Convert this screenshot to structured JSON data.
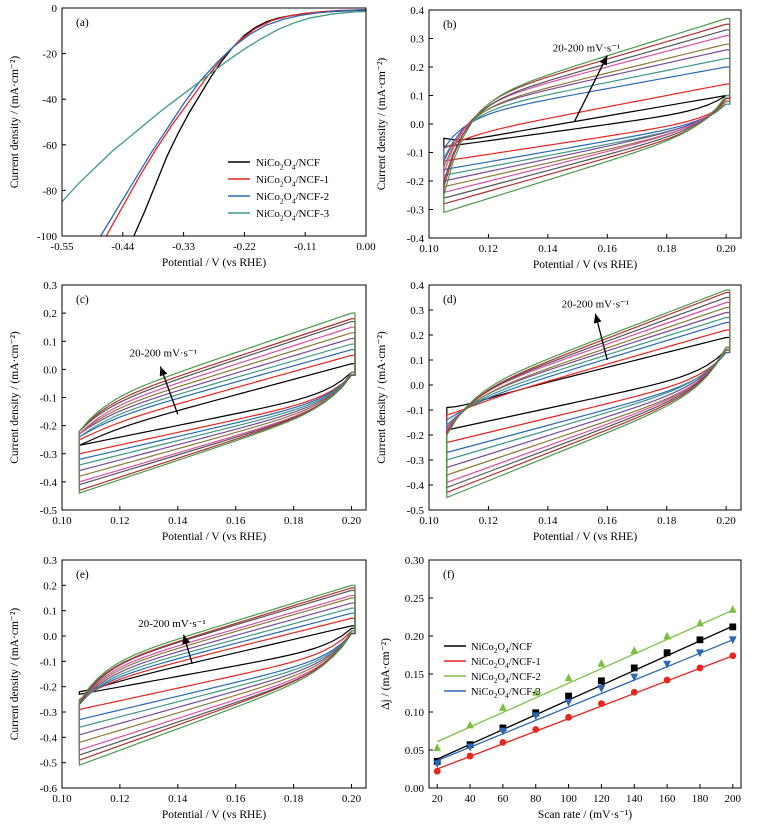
{
  "chart_data": [
    {
      "panel": "(a)",
      "type": "line",
      "xlabel": "Potential / V (vs RHE)",
      "ylabel": "Current density / (mA·cm⁻²)",
      "xlim": [
        -0.55,
        0.0
      ],
      "ylim": [
        -100,
        0
      ],
      "xticks": [
        -0.55,
        -0.44,
        -0.33,
        -0.22,
        -0.11,
        0.0
      ],
      "xtick_labels": [
        "-0.55",
        "-0.44",
        "-0.33",
        "-0.22",
        "-0.11",
        "0.00"
      ],
      "yticks": [
        -100,
        -80,
        -60,
        -40,
        -20,
        0
      ],
      "ytick_labels": [
        "-100",
        "-80",
        "-60",
        "-40",
        "-20",
        "0"
      ],
      "legend": "center-right",
      "series": [
        {
          "name": "NiCo2O4/NCF",
          "color": "#000000",
          "x": [
            -0.42,
            -0.4,
            -0.38,
            -0.36,
            -0.34,
            -0.32,
            -0.3,
            -0.28,
            -0.26,
            -0.24,
            -0.22,
            -0.2,
            -0.18,
            -0.16,
            -0.14,
            -0.12,
            -0.1,
            -0.08,
            -0.05,
            -0.02,
            0.0
          ],
          "y": [
            -100,
            -89,
            -77,
            -65,
            -55,
            -46,
            -38,
            -30,
            -23,
            -17,
            -12,
            -8.5,
            -6,
            -4.5,
            -3.5,
            -2.8,
            -2.2,
            -1.8,
            -1.4,
            -1.1,
            -1.0
          ]
        },
        {
          "name": "NiCo2O4/NCF-1",
          "color": "#e8251f",
          "x": [
            -0.47,
            -0.44,
            -0.41,
            -0.38,
            -0.35,
            -0.32,
            -0.29,
            -0.26,
            -0.23,
            -0.2,
            -0.17,
            -0.14,
            -0.11,
            -0.08,
            -0.05,
            0.0
          ],
          "y": [
            -100,
            -87,
            -74,
            -62,
            -51,
            -41,
            -31,
            -22,
            -14.5,
            -9,
            -5.5,
            -3.5,
            -2.3,
            -1.6,
            -1.1,
            -0.7
          ]
        },
        {
          "name": "NiCo2O4/NCF-2",
          "color": "#2a68b5",
          "x": [
            -0.48,
            -0.45,
            -0.42,
            -0.39,
            -0.36,
            -0.33,
            -0.3,
            -0.27,
            -0.24,
            -0.21,
            -0.18,
            -0.15,
            -0.12,
            -0.09,
            -0.05,
            0.0
          ],
          "y": [
            -100,
            -88,
            -76,
            -64,
            -53,
            -42,
            -32,
            -24,
            -17,
            -11.5,
            -7.5,
            -5,
            -3.3,
            -2.2,
            -1.3,
            -0.8
          ]
        },
        {
          "name": "NiCo2O4/NCF-3",
          "color": "#3f9a86",
          "x": [
            -0.55,
            -0.52,
            -0.49,
            -0.46,
            -0.43,
            -0.4,
            -0.37,
            -0.34,
            -0.31,
            -0.28,
            -0.25,
            -0.22,
            -0.19,
            -0.16,
            -0.13,
            -0.1,
            -0.06,
            -0.02,
            0.0
          ],
          "y": [
            -85,
            -77,
            -70,
            -63,
            -57,
            -51,
            -45,
            -39.5,
            -34,
            -28.5,
            -23,
            -18,
            -13.5,
            -9.5,
            -6.5,
            -4.3,
            -2.6,
            -1.7,
            -1.5
          ]
        }
      ]
    },
    {
      "panel": "(b)",
      "type": "line",
      "subtype": "cyclic-voltammetry",
      "xlabel": "Potential / V (vs RHE)",
      "ylabel": "Current density / (mA·cm⁻²)",
      "xlim": [
        0.1,
        0.205
      ],
      "ylim": [
        -0.4,
        0.4
      ],
      "xticks": [
        0.1,
        0.12,
        0.14,
        0.16,
        0.18,
        0.2
      ],
      "xtick_labels": [
        "0.10",
        "0.12",
        "0.14",
        "0.16",
        "0.18",
        "0.20"
      ],
      "yticks": [
        -0.4,
        -0.3,
        -0.2,
        -0.1,
        0.0,
        0.1,
        0.2,
        0.3,
        0.4
      ],
      "ytick_labels": [
        "-0.4",
        "-0.3",
        "-0.2",
        "-0.1",
        "0.0",
        "0.1",
        "0.2",
        "0.3",
        "0.4"
      ],
      "annotation": {
        "text": "20-200 mV·s⁻¹",
        "x": 0.153,
        "y": 0.255,
        "arrow_from": [
          0.149,
          0.01
        ],
        "arrow_to": [
          0.16,
          0.24
        ]
      },
      "scan_rates": [
        20,
        40,
        60,
        80,
        100,
        120,
        140,
        160,
        180,
        200
      ],
      "v_start": 0.105,
      "v_end": 0.2,
      "vertex_left": [
        -0.05,
        -0.085,
        -0.085,
        -0.12,
        -0.13,
        -0.15,
        -0.17,
        -0.2,
        -0.22,
        -0.25
      ],
      "vertex_right_low": [
        0.1,
        0.07,
        0.07,
        0.07,
        0.08,
        0.08,
        0.09,
        0.09,
        0.09,
        0.1
      ],
      "anodic_end": [
        0.1,
        0.14,
        0.2,
        0.23,
        0.26,
        0.28,
        0.31,
        0.33,
        0.35,
        0.37
      ],
      "cathodic_end": [
        -0.08,
        -0.13,
        -0.16,
        -0.18,
        -0.2,
        -0.22,
        -0.24,
        -0.26,
        -0.28,
        -0.31
      ],
      "knee_up": [
        -0.07,
        -0.05,
        0.02,
        0.03,
        0.04,
        0.04,
        0.05,
        0.05,
        0.06,
        0.06
      ],
      "colors": [
        "#000000",
        "#e8251f",
        "#2a68b5",
        "#3f9a86",
        "#7a4a9a",
        "#8c7a3a",
        "#d94fa3",
        "#555555",
        "#b03030",
        "#4a9a4a"
      ]
    },
    {
      "panel": "(c)",
      "type": "line",
      "subtype": "cyclic-voltammetry",
      "xlabel": "Potential / V (vs RHE)",
      "ylabel": "Current density / (mA·cm⁻²)",
      "xlim": [
        0.1,
        0.205
      ],
      "ylim": [
        -0.5,
        0.3
      ],
      "xticks": [
        0.1,
        0.12,
        0.14,
        0.16,
        0.18,
        0.2
      ],
      "xtick_labels": [
        "0.10",
        "0.12",
        "0.14",
        "0.16",
        "0.18",
        "0.20"
      ],
      "yticks": [
        -0.5,
        -0.4,
        -0.3,
        -0.2,
        -0.1,
        0.0,
        0.1,
        0.2,
        0.3
      ],
      "ytick_labels": [
        "-0.5",
        "-0.4",
        "-0.3",
        "-0.2",
        "-0.1",
        "0.0",
        "0.1",
        "0.2",
        "0.3"
      ],
      "annotation": {
        "text": "20-200 mV·s⁻¹",
        "x": 0.135,
        "y": 0.045,
        "arrow_from": [
          0.14,
          -0.16
        ],
        "arrow_to": [
          0.134,
          0.01
        ]
      },
      "scan_rates": [
        20,
        40,
        60,
        80,
        100,
        120,
        140,
        160,
        180,
        200
      ],
      "v_start": 0.106,
      "v_end": 0.2,
      "vertex_left": [
        -0.27,
        -0.25,
        -0.24,
        -0.24,
        -0.23,
        -0.23,
        -0.23,
        -0.22,
        -0.22,
        -0.22
      ],
      "vertex_right_low": [
        -0.01,
        -0.02,
        -0.02,
        -0.02,
        -0.02,
        -0.02,
        -0.02,
        -0.02,
        -0.01,
        -0.01
      ],
      "anodic_end": [
        0.02,
        0.05,
        0.07,
        0.09,
        0.11,
        0.13,
        0.15,
        0.17,
        0.18,
        0.2
      ],
      "cathodic_end": [
        -0.27,
        -0.3,
        -0.32,
        -0.34,
        -0.36,
        -0.38,
        -0.4,
        -0.41,
        -0.43,
        -0.44
      ],
      "knee_up": [
        -0.24,
        -0.22,
        -0.2,
        -0.19,
        -0.18,
        -0.17,
        -0.16,
        -0.15,
        -0.14,
        -0.13
      ],
      "colors": [
        "#000000",
        "#e8251f",
        "#2a68b5",
        "#3f9a86",
        "#7a4a9a",
        "#8c7a3a",
        "#d94fa3",
        "#555555",
        "#b03030",
        "#4a9a4a"
      ]
    },
    {
      "panel": "(d)",
      "type": "line",
      "subtype": "cyclic-voltammetry",
      "xlabel": "Potential / V (vs RHE)",
      "ylabel": "Current density / (mA·cm⁻²)",
      "xlim": [
        0.1,
        0.205
      ],
      "ylim": [
        -0.5,
        0.4
      ],
      "xticks": [
        0.1,
        0.12,
        0.14,
        0.16,
        0.18,
        0.2
      ],
      "xtick_labels": [
        "0.10",
        "0.12",
        "0.14",
        "0.16",
        "0.18",
        "0.20"
      ],
      "yticks": [
        -0.5,
        -0.4,
        -0.3,
        -0.2,
        -0.1,
        0.0,
        0.1,
        0.2,
        0.3,
        0.4
      ],
      "ytick_labels": [
        "-0.5",
        "-0.4",
        "-0.3",
        "-0.2",
        "-0.1",
        "0.0",
        "0.1",
        "0.2",
        "0.3",
        "0.4"
      ],
      "annotation": {
        "text": "20-200 mV·s⁻¹",
        "x": 0.156,
        "y": 0.31,
        "arrow_from": [
          0.16,
          0.1
        ],
        "arrow_to": [
          0.156,
          0.285
        ]
      },
      "scan_rates": [
        20,
        40,
        60,
        80,
        100,
        120,
        140,
        160,
        180,
        200
      ],
      "v_start": 0.106,
      "v_end": 0.2,
      "vertex_left": [
        -0.09,
        -0.12,
        -0.14,
        -0.16,
        -0.17,
        -0.18,
        -0.18,
        -0.19,
        -0.19,
        -0.2
      ],
      "vertex_right_low": [
        0.14,
        0.13,
        0.13,
        0.14,
        0.14,
        0.14,
        0.15,
        0.15,
        0.15,
        0.15
      ],
      "anodic_end": [
        0.19,
        0.22,
        0.25,
        0.27,
        0.29,
        0.31,
        0.33,
        0.35,
        0.37,
        0.38
      ],
      "cathodic_end": [
        -0.18,
        -0.23,
        -0.27,
        -0.3,
        -0.33,
        -0.36,
        -0.39,
        -0.41,
        -0.43,
        -0.45
      ],
      "knee_up": [
        -0.09,
        -0.1,
        -0.09,
        -0.08,
        -0.07,
        -0.07,
        -0.06,
        -0.06,
        -0.06,
        -0.05
      ],
      "colors": [
        "#000000",
        "#e8251f",
        "#2a68b5",
        "#3f9a86",
        "#7a4a9a",
        "#8c7a3a",
        "#d94fa3",
        "#555555",
        "#b03030",
        "#4a9a4a"
      ]
    },
    {
      "panel": "(e)",
      "type": "line",
      "subtype": "cyclic-voltammetry",
      "xlabel": "Potential / V (vs RHE)",
      "ylabel": "Current density / (mA·cm⁻²)",
      "xlim": [
        0.1,
        0.205
      ],
      "ylim": [
        -0.6,
        0.3
      ],
      "xticks": [
        0.1,
        0.12,
        0.14,
        0.16,
        0.18,
        0.2
      ],
      "xtick_labels": [
        "0.10",
        "0.12",
        "0.14",
        "0.16",
        "0.18",
        "0.20"
      ],
      "yticks": [
        -0.6,
        -0.5,
        -0.4,
        -0.3,
        -0.2,
        -0.1,
        0.0,
        0.1,
        0.2,
        0.3
      ],
      "ytick_labels": [
        "-0.6",
        "-0.5",
        "-0.4",
        "-0.3",
        "-0.2",
        "-0.1",
        "0.0",
        "0.1",
        "0.2",
        "0.3"
      ],
      "annotation": {
        "text": "20-200 mV·s⁻¹",
        "x": 0.138,
        "y": 0.035,
        "arrow_from": [
          0.145,
          -0.11
        ],
        "arrow_to": [
          0.142,
          0.005
        ]
      },
      "scan_rates": [
        20,
        40,
        60,
        80,
        100,
        120,
        140,
        160,
        180,
        200
      ],
      "v_start": 0.106,
      "v_end": 0.2,
      "vertex_left": [
        -0.22,
        -0.25,
        -0.26,
        -0.27,
        -0.27,
        -0.27,
        -0.27,
        -0.27,
        -0.26,
        -0.26
      ],
      "vertex_right_low": [
        0.03,
        0.02,
        0.01,
        0.01,
        0.01,
        0.01,
        0.01,
        0.01,
        0.02,
        0.02
      ],
      "anodic_end": [
        0.04,
        0.07,
        0.09,
        0.11,
        0.13,
        0.15,
        0.16,
        0.18,
        0.19,
        0.2
      ],
      "cathodic_end": [
        -0.23,
        -0.29,
        -0.33,
        -0.36,
        -0.39,
        -0.42,
        -0.45,
        -0.47,
        -0.49,
        -0.51
      ],
      "knee_up": [
        -0.21,
        -0.2,
        -0.19,
        -0.18,
        -0.17,
        -0.16,
        -0.15,
        -0.14,
        -0.14,
        -0.13
      ],
      "colors": [
        "#000000",
        "#e8251f",
        "#2a68b5",
        "#3f9a86",
        "#7a4a9a",
        "#8c7a3a",
        "#d94fa3",
        "#555555",
        "#b03030",
        "#4a9a4a"
      ]
    },
    {
      "panel": "(f)",
      "type": "scatter",
      "xlabel": "Scan rate / (mV·s⁻¹)",
      "ylabel": "Δj / (mA·cm⁻²)",
      "xlim": [
        15,
        205
      ],
      "ylim": [
        0.0,
        0.3
      ],
      "xticks": [
        20,
        40,
        60,
        80,
        100,
        120,
        140,
        160,
        180,
        200
      ],
      "xtick_labels": [
        "20",
        "40",
        "60",
        "80",
        "100",
        "120",
        "140",
        "160",
        "180",
        "200"
      ],
      "yticks": [
        0.0,
        0.05,
        0.1,
        0.15,
        0.2,
        0.25,
        0.3
      ],
      "ytick_labels": [
        "0.00",
        "0.05",
        "0.10",
        "0.15",
        "0.20",
        "0.25",
        "0.30"
      ],
      "legend": "top-left",
      "x": [
        20,
        40,
        60,
        80,
        100,
        120,
        140,
        160,
        180,
        200
      ],
      "series": [
        {
          "name": "NiCo2O4/NCF",
          "color": "#000000",
          "marker": "square",
          "values": [
            0.035,
            0.057,
            0.079,
            0.099,
            0.121,
            0.141,
            0.158,
            0.178,
            0.195,
            0.212
          ],
          "fit": [
            0.038,
            0.213
          ]
        },
        {
          "name": "NiCo2O4/NCF-1",
          "color": "#e8251f",
          "marker": "circle",
          "values": [
            0.022,
            0.042,
            0.06,
            0.077,
            0.093,
            0.111,
            0.126,
            0.142,
            0.158,
            0.174
          ],
          "fit": [
            0.025,
            0.174
          ]
        },
        {
          "name": "NiCo2O4/NCF-2",
          "color": "#7ac143",
          "marker": "triangle-up",
          "values": [
            0.053,
            0.083,
            0.106,
            0.126,
            0.145,
            0.164,
            0.181,
            0.2,
            0.217,
            0.235
          ],
          "fit": [
            0.061,
            0.234
          ]
        },
        {
          "name": "NiCo2O4/NCF-3",
          "color": "#2a68b5",
          "marker": "triangle-down",
          "values": [
            0.032,
            0.054,
            0.075,
            0.095,
            0.113,
            0.131,
            0.146,
            0.163,
            0.178,
            0.195
          ],
          "fit": [
            0.036,
            0.195
          ]
        }
      ]
    }
  ]
}
